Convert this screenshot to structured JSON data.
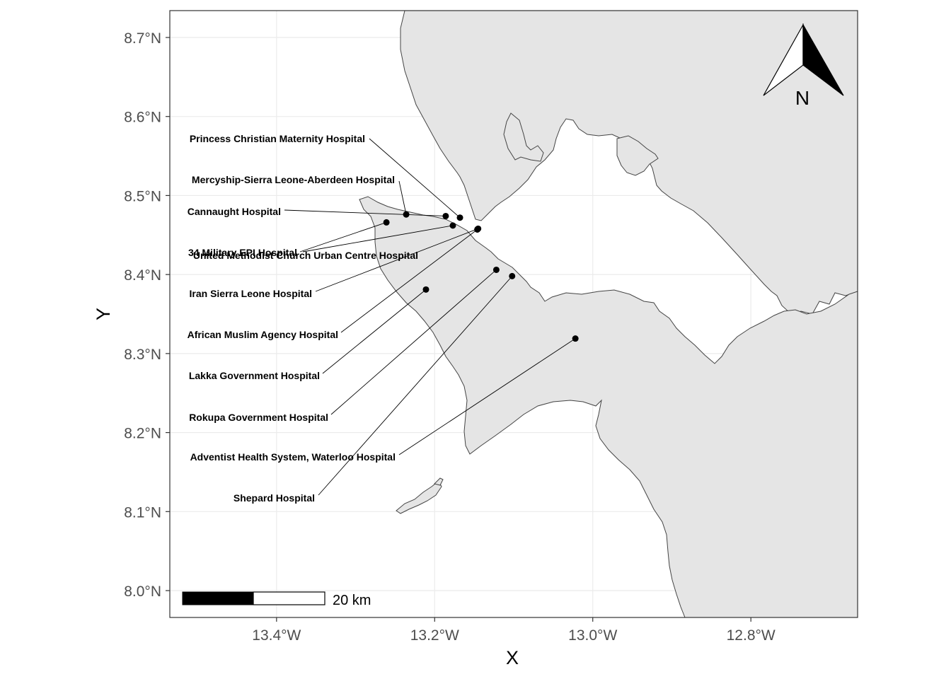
{
  "axes": {
    "x_title": "X",
    "y_title": "Y",
    "x_ticks": [
      {
        "value": -13.4,
        "label": "13.4°W"
      },
      {
        "value": -13.2,
        "label": "13.2°W"
      },
      {
        "value": -13.0,
        "label": "13.0°W"
      },
      {
        "value": -12.8,
        "label": "12.8°W"
      }
    ],
    "y_ticks": [
      {
        "value": 8.0,
        "label": "8.0°N"
      },
      {
        "value": 8.1,
        "label": "8.1°N"
      },
      {
        "value": 8.2,
        "label": "8.2°N"
      },
      {
        "value": 8.3,
        "label": "8.3°N"
      },
      {
        "value": 8.4,
        "label": "8.4°N"
      },
      {
        "value": 8.5,
        "label": "8.5°N"
      },
      {
        "value": 8.6,
        "label": "8.6°N"
      },
      {
        "value": 8.7,
        "label": "8.7°N"
      }
    ],
    "xlim": [
      -13.535,
      -12.665
    ],
    "ylim": [
      7.966,
      8.734
    ]
  },
  "colors": {
    "land": "#e5e5e5",
    "water": "#ffffff",
    "points": "#000000"
  },
  "north_arrow": {
    "label": "N"
  },
  "scale_bar": {
    "label": "20 km"
  },
  "hospitals": [
    {
      "name": "Princess Christian Maternity Hospital",
      "lon": -13.168,
      "lat": 8.472
    },
    {
      "name": "Mercyship-Sierra Leone-Aberdeen Hospital",
      "lon": -13.236,
      "lat": 8.476
    },
    {
      "name": "Cannaught Hospital",
      "lon": -13.186,
      "lat": 8.474
    },
    {
      "name": "34 Military EPI Hospital",
      "lon": -13.261,
      "lat": 8.466
    },
    {
      "name": "United Methodist Church Urban Centre Hospital",
      "lon": -13.177,
      "lat": 8.462
    },
    {
      "name": "Iran Sierra Leone Hospital",
      "lon": -13.145,
      "lat": 8.458
    },
    {
      "name": "African Muslim Agency Hospital",
      "lon": -13.146,
      "lat": 8.457
    },
    {
      "name": "Lakka Government Hospital",
      "lon": -13.211,
      "lat": 8.381
    },
    {
      "name": "Rokupa Government Hospital",
      "lon": -13.122,
      "lat": 8.406
    },
    {
      "name": "Adventist Health System, Waterloo Hospital",
      "lon": -13.022,
      "lat": 8.319
    },
    {
      "name": "Shepard Hospital",
      "lon": -13.102,
      "lat": 8.398
    }
  ]
}
